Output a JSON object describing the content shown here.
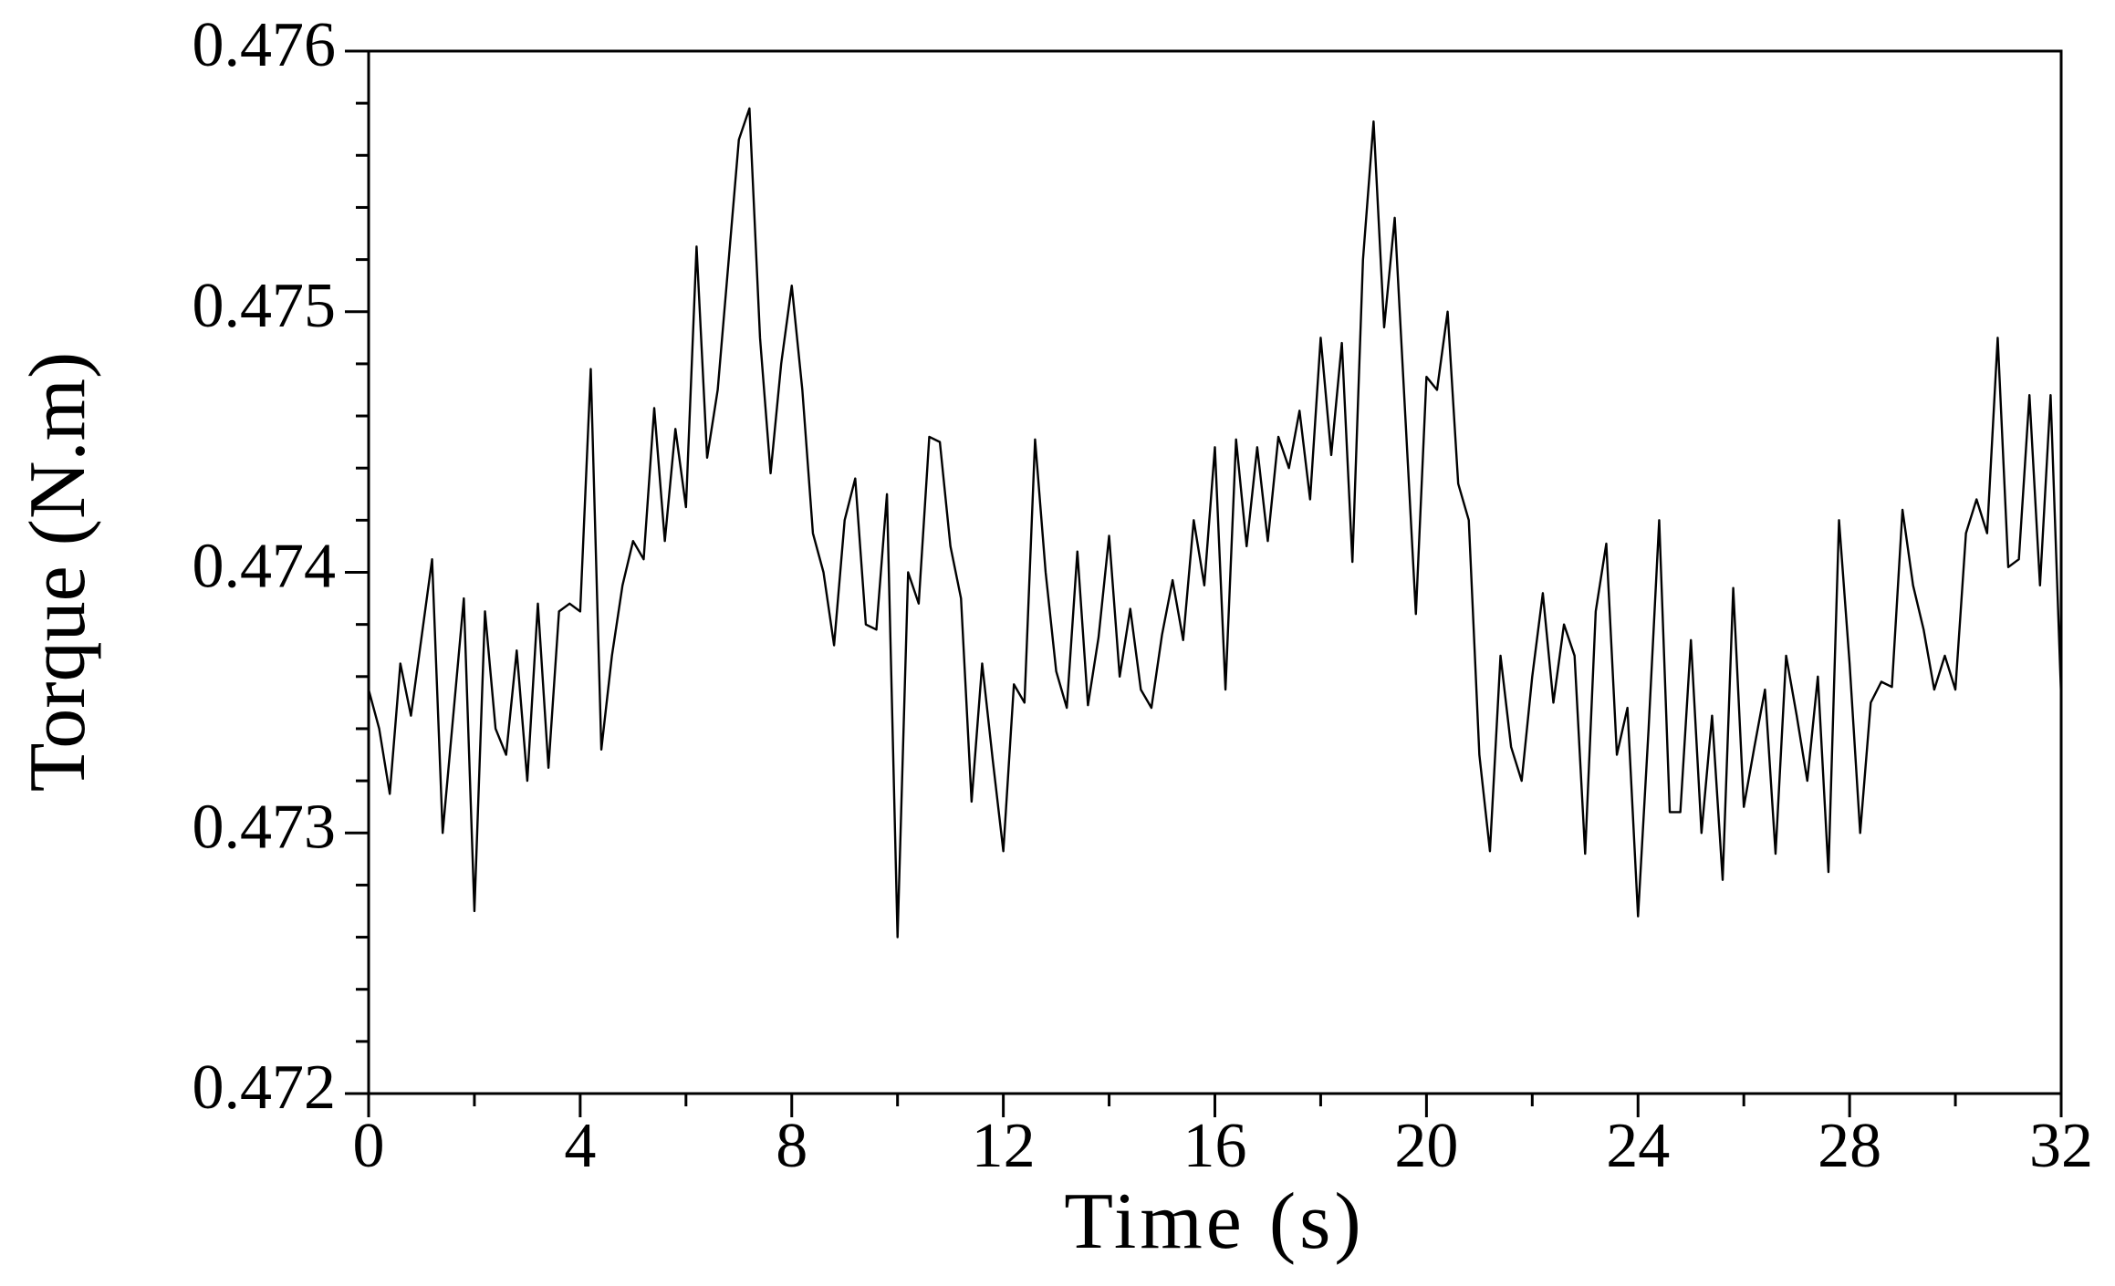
{
  "chart_data": {
    "type": "line",
    "xlabel": "Time (s)",
    "ylabel": "Torque (N.m)",
    "color": "#000000",
    "xlim": [
      0,
      32
    ],
    "xticks": [
      0,
      4,
      8,
      12,
      16,
      20,
      24,
      28,
      32
    ],
    "ylim": [
      0.472,
      0.476
    ],
    "yticks": [
      0.472,
      0.473,
      0.474,
      0.475,
      0.476
    ],
    "x": [
      0,
      0.2,
      0.4,
      0.6,
      0.8,
      1,
      1.2,
      1.4,
      1.6,
      1.8,
      2,
      2.2,
      2.4,
      2.6,
      2.8,
      3,
      3.2,
      3.4,
      3.6,
      3.8,
      4,
      4.2,
      4.4,
      4.6,
      4.8,
      5,
      5.2,
      5.4,
      5.6,
      5.8,
      6,
      6.2,
      6.4,
      6.6,
      6.8,
      7,
      7.2,
      7.4,
      7.6,
      7.8,
      8,
      8.2,
      8.4,
      8.6,
      8.8,
      9,
      9.2,
      9.4,
      9.6,
      9.8,
      10,
      10.2,
      10.4,
      10.6,
      10.8,
      11,
      11.2,
      11.4,
      11.6,
      11.8,
      12,
      12.2,
      12.4,
      12.6,
      12.8,
      13,
      13.2,
      13.4,
      13.6,
      13.8,
      14,
      14.2,
      14.4,
      14.6,
      14.8,
      15,
      15.2,
      15.4,
      15.6,
      15.8,
      16,
      16.2,
      16.4,
      16.6,
      16.8,
      17,
      17.2,
      17.4,
      17.6,
      17.8,
      18,
      18.2,
      18.4,
      18.6,
      18.8,
      19,
      19.2,
      19.4,
      19.6,
      19.8,
      20,
      20.2,
      20.4,
      20.6,
      20.8,
      21,
      21.2,
      21.4,
      21.6,
      21.8,
      22,
      22.2,
      22.4,
      22.6,
      22.8,
      23,
      23.2,
      23.4,
      23.6,
      23.8,
      24,
      24.2,
      24.4,
      24.6,
      24.8,
      25,
      25.2,
      25.4,
      25.6,
      25.8,
      26,
      26.2,
      26.4,
      26.6,
      26.8,
      27,
      27.2,
      27.4,
      27.6,
      27.8,
      28,
      28.2,
      28.4,
      28.6,
      28.8,
      29,
      29.2,
      29.4,
      29.6,
      29.8,
      30,
      30.2,
      30.4,
      30.6,
      30.8,
      31,
      31.2,
      31.4,
      31.6,
      31.8,
      32
    ],
    "values": [
      0.47355,
      0.4734,
      0.47315,
      0.47365,
      0.47345,
      0.47375,
      0.47405,
      0.473,
      0.47345,
      0.4739,
      0.4727,
      0.47385,
      0.4734,
      0.4733,
      0.4737,
      0.4732,
      0.47388,
      0.47325,
      0.47385,
      0.47388,
      0.47385,
      0.47478,
      0.47332,
      0.47368,
      0.47395,
      0.47412,
      0.47405,
      0.47463,
      0.47412,
      0.47455,
      0.47425,
      0.47525,
      0.47444,
      0.4747,
      0.47518,
      0.47566,
      0.47578,
      0.4749,
      0.47438,
      0.4748,
      0.4751,
      0.4747,
      0.47415,
      0.474,
      0.47372,
      0.4742,
      0.47436,
      0.4738,
      0.47378,
      0.4743,
      0.4726,
      0.474,
      0.47388,
      0.47452,
      0.4745,
      0.4741,
      0.4739,
      0.47312,
      0.47365,
      0.47328,
      0.47293,
      0.47357,
      0.4735,
      0.47451,
      0.474,
      0.47362,
      0.47348,
      0.47408,
      0.47349,
      0.47375,
      0.47414,
      0.4736,
      0.47386,
      0.47355,
      0.47348,
      0.47376,
      0.47397,
      0.47374,
      0.4742,
      0.47395,
      0.47448,
      0.47355,
      0.47451,
      0.4741,
      0.47448,
      0.47412,
      0.47452,
      0.4744,
      0.47462,
      0.47428,
      0.4749,
      0.47445,
      0.47488,
      0.47404,
      0.4752,
      0.47573,
      0.47494,
      0.47536,
      0.4746,
      0.47384,
      0.47475,
      0.4747,
      0.475,
      0.47434,
      0.4742,
      0.4733,
      0.47293,
      0.47368,
      0.47333,
      0.4732,
      0.4736,
      0.47392,
      0.4735,
      0.4738,
      0.47368,
      0.47292,
      0.47385,
      0.47411,
      0.4733,
      0.47348,
      0.47268,
      0.4734,
      0.4742,
      0.47308,
      0.47308,
      0.47374,
      0.473,
      0.47345,
      0.47282,
      0.47394,
      0.4731,
      0.47333,
      0.47355,
      0.47292,
      0.47368,
      0.47345,
      0.4732,
      0.4736,
      0.47285,
      0.4742,
      0.47365,
      0.473,
      0.4735,
      0.47358,
      0.47356,
      0.47424,
      0.47395,
      0.47378,
      0.47355,
      0.47368,
      0.47355,
      0.47415,
      0.47428,
      0.47415,
      0.4749,
      0.47402,
      0.47405,
      0.47468,
      0.47395,
      0.47468,
      0.47352
    ]
  }
}
